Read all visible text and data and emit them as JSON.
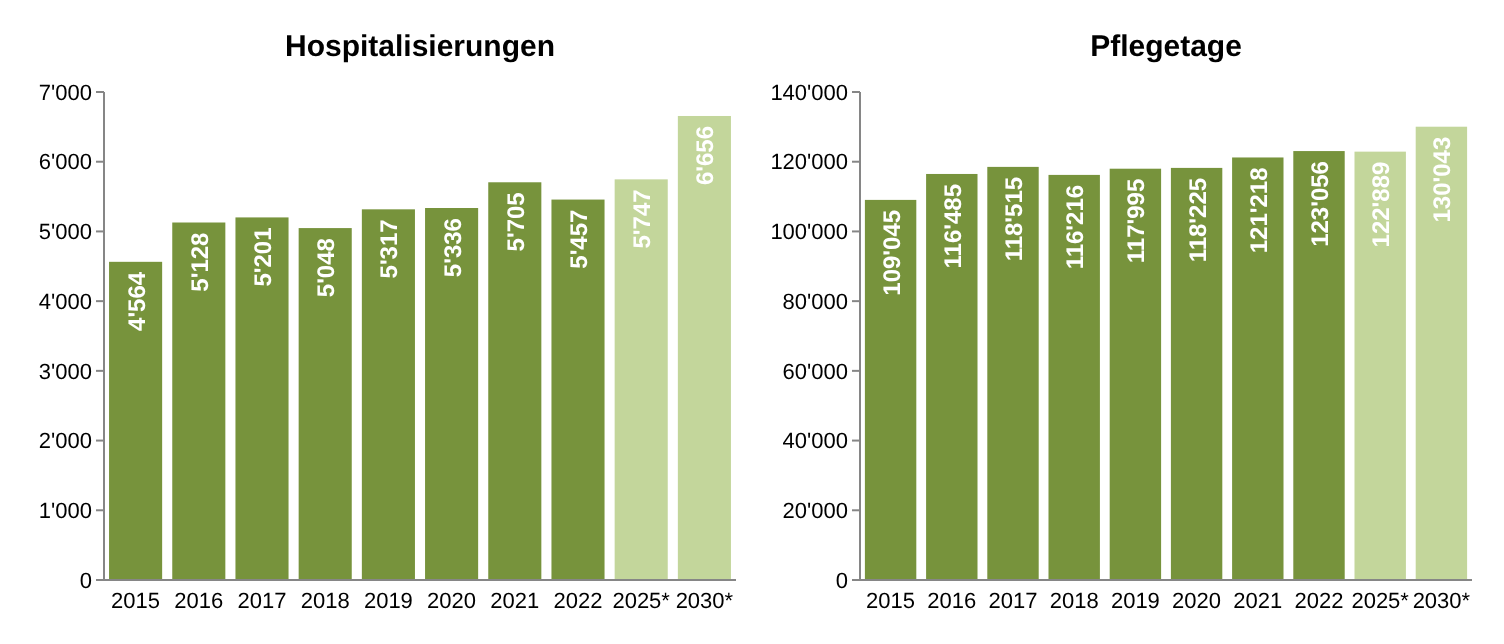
{
  "chart_data": [
    {
      "type": "bar",
      "title": "Hospitalisierungen",
      "categories": [
        "2015",
        "2016",
        "2017",
        "2018",
        "2019",
        "2020",
        "2021",
        "2022",
        "2025*",
        "2030*"
      ],
      "values": [
        4564,
        5128,
        5201,
        5048,
        5317,
        5336,
        5705,
        5457,
        5747,
        6656
      ],
      "value_labels": [
        "4'564",
        "5'128",
        "5'201",
        "5'048",
        "5'317",
        "5'336",
        "5'705",
        "5'457",
        "5'747",
        "6'656"
      ],
      "colors": [
        "#77933c",
        "#77933c",
        "#77933c",
        "#77933c",
        "#77933c",
        "#77933c",
        "#77933c",
        "#77933c",
        "#c3d69b",
        "#c3d69b"
      ],
      "ylim": [
        0,
        7000
      ],
      "yticks": [
        0,
        {
          "value": 1000,
          "label": "1'000"
        },
        {
          "value": 2000,
          "label": "2'000"
        },
        {
          "value": 3000,
          "label": "3'000"
        },
        {
          "value": 4000,
          "label": "4'000"
        },
        {
          "value": 5000,
          "label": "5'000"
        },
        {
          "value": 6000,
          "label": "6'000"
        },
        {
          "value": 7000,
          "label": "7'000"
        }
      ]
    },
    {
      "type": "bar",
      "title": "Pflegetage",
      "categories": [
        "2015",
        "2016",
        "2017",
        "2018",
        "2019",
        "2020",
        "2021",
        "2022",
        "2025*",
        "2030*"
      ],
      "values": [
        109045,
        116485,
        118515,
        116216,
        117995,
        118225,
        121218,
        123056,
        122889,
        130043
      ],
      "value_labels": [
        "109'045",
        "116'485",
        "118'515",
        "116'216",
        "117'995",
        "118'225",
        "121'218",
        "123'056",
        "122'889",
        "130'043"
      ],
      "colors": [
        "#77933c",
        "#77933c",
        "#77933c",
        "#77933c",
        "#77933c",
        "#77933c",
        "#77933c",
        "#77933c",
        "#c3d69b",
        "#c3d69b"
      ],
      "ylim": [
        0,
        140000
      ],
      "yticks": [
        0,
        {
          "value": 20000,
          "label": "20'000"
        },
        {
          "value": 40000,
          "label": "40'000"
        },
        {
          "value": 60000,
          "label": "60'000"
        },
        {
          "value": 80000,
          "label": "80'000"
        },
        {
          "value": 100000,
          "label": "100'000"
        },
        {
          "value": 120000,
          "label": "120'000"
        },
        {
          "value": 140000,
          "label": "140'000"
        }
      ]
    }
  ]
}
